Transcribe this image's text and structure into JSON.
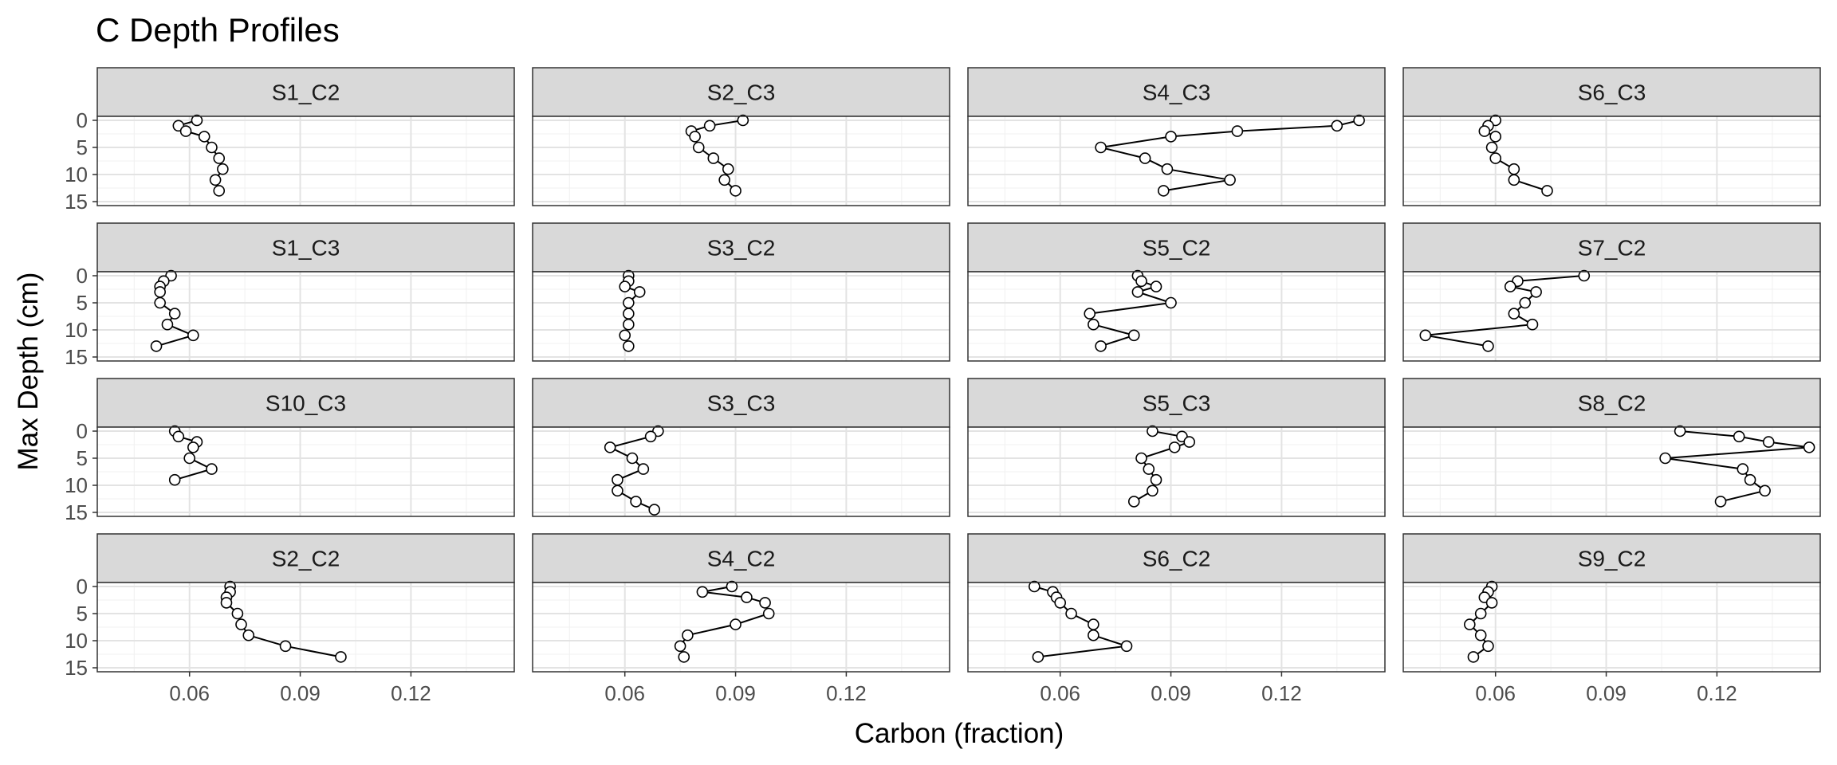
{
  "chart_data": {
    "type": "line",
    "title": "C Depth Profiles",
    "xlabel": "Carbon (fraction)",
    "ylabel": "Max Depth (cm)",
    "xlim": [
      0.035,
      0.148
    ],
    "ylim": [
      15,
      0
    ],
    "x_ticks": [
      0.06,
      0.09,
      0.12
    ],
    "x_tick_labels": [
      "0.06",
      "0.09",
      "0.12"
    ],
    "y_ticks": [
      0,
      5,
      10,
      15
    ],
    "y_tick_labels": [
      "0",
      "5",
      "10",
      "15"
    ],
    "grid": true,
    "legend": "none",
    "panels": [
      {
        "name": "S1_C2",
        "x": [
          0.062,
          0.057,
          0.059,
          0.064,
          0.066,
          0.068,
          0.069,
          0.067,
          0.068
        ],
        "y": [
          0,
          1,
          2,
          3,
          5,
          7,
          9,
          11,
          13
        ]
      },
      {
        "name": "S2_C3",
        "x": [
          0.092,
          0.083,
          0.078,
          0.079,
          0.08,
          0.084,
          0.088,
          0.087,
          0.09
        ],
        "y": [
          0,
          1,
          2,
          3,
          5,
          7,
          9,
          11,
          13
        ]
      },
      {
        "name": "S4_C3",
        "x": [
          0.141,
          0.135,
          0.108,
          0.09,
          0.071,
          0.083,
          0.089,
          0.106,
          0.088
        ],
        "y": [
          0,
          1,
          2,
          3,
          5,
          7,
          9,
          11,
          13
        ]
      },
      {
        "name": "S6_C3",
        "x": [
          0.06,
          0.058,
          0.057,
          0.06,
          0.059,
          0.06,
          0.065,
          0.065,
          0.074
        ],
        "y": [
          0,
          1,
          2,
          3,
          5,
          7,
          9,
          11,
          13
        ]
      },
      {
        "name": "S1_C3",
        "x": [
          0.055,
          0.053,
          0.052,
          0.052,
          0.052,
          0.056,
          0.054,
          0.061,
          0.051
        ],
        "y": [
          0,
          1,
          2,
          3,
          5,
          7,
          9,
          11,
          13
        ]
      },
      {
        "name": "S3_C2",
        "x": [
          0.061,
          0.061,
          0.06,
          0.064,
          0.061,
          0.061,
          0.061,
          0.06,
          0.061
        ],
        "y": [
          0,
          1,
          2,
          3,
          5,
          7,
          9,
          11,
          13
        ]
      },
      {
        "name": "S5_C2",
        "x": [
          0.081,
          0.082,
          0.086,
          0.081,
          0.09,
          0.068,
          0.069,
          0.08,
          0.071
        ],
        "y": [
          0,
          1,
          2,
          3,
          5,
          7,
          9,
          11,
          13
        ]
      },
      {
        "name": "S7_C2",
        "x": [
          0.084,
          0.066,
          0.064,
          0.071,
          0.068,
          0.065,
          0.07,
          0.041,
          0.058
        ],
        "y": [
          0,
          1,
          2,
          3,
          5,
          7,
          9,
          11,
          13
        ]
      },
      {
        "name": "S10_C3",
        "x": [
          0.056,
          0.057,
          0.062,
          0.061,
          0.06,
          0.066,
          0.056
        ],
        "y": [
          0,
          1,
          2,
          3,
          5,
          7,
          9
        ]
      },
      {
        "name": "S3_C3",
        "x": [
          0.069,
          0.067,
          0.056,
          0.062,
          0.065,
          0.058,
          0.058,
          0.063,
          0.068
        ],
        "y": [
          0,
          1,
          3,
          5,
          7,
          9,
          11,
          13,
          14.5
        ]
      },
      {
        "name": "S5_C3",
        "x": [
          0.085,
          0.093,
          0.095,
          0.091,
          0.082,
          0.084,
          0.086,
          0.085,
          0.08
        ],
        "y": [
          0,
          1,
          2,
          3,
          5,
          7,
          9,
          11,
          13
        ]
      },
      {
        "name": "S8_C2",
        "x": [
          0.11,
          0.126,
          0.134,
          0.145,
          0.106,
          0.127,
          0.129,
          0.133,
          0.121
        ],
        "y": [
          0,
          1,
          2,
          3,
          5,
          7,
          9,
          11,
          13
        ]
      },
      {
        "name": "S2_C2",
        "x": [
          0.071,
          0.071,
          0.07,
          0.07,
          0.073,
          0.074,
          0.076,
          0.086,
          0.101
        ],
        "y": [
          0,
          1,
          2,
          3,
          5,
          7,
          9,
          11,
          13
        ]
      },
      {
        "name": "S4_C2",
        "x": [
          0.089,
          0.081,
          0.093,
          0.098,
          0.099,
          0.09,
          0.077,
          0.075,
          0.076
        ],
        "y": [
          0,
          1,
          2,
          3,
          5,
          7,
          9,
          11,
          13
        ]
      },
      {
        "name": "S6_C2",
        "x": [
          0.053,
          0.058,
          0.059,
          0.06,
          0.063,
          0.069,
          0.069,
          0.078,
          0.054
        ],
        "y": [
          0,
          1,
          2,
          3,
          5,
          7,
          9,
          11,
          13
        ]
      },
      {
        "name": "S9_C2",
        "x": [
          0.059,
          0.058,
          0.057,
          0.059,
          0.056,
          0.053,
          0.056,
          0.058,
          0.054
        ],
        "y": [
          0,
          1,
          2,
          3,
          5,
          7,
          9,
          11,
          13
        ]
      }
    ]
  }
}
